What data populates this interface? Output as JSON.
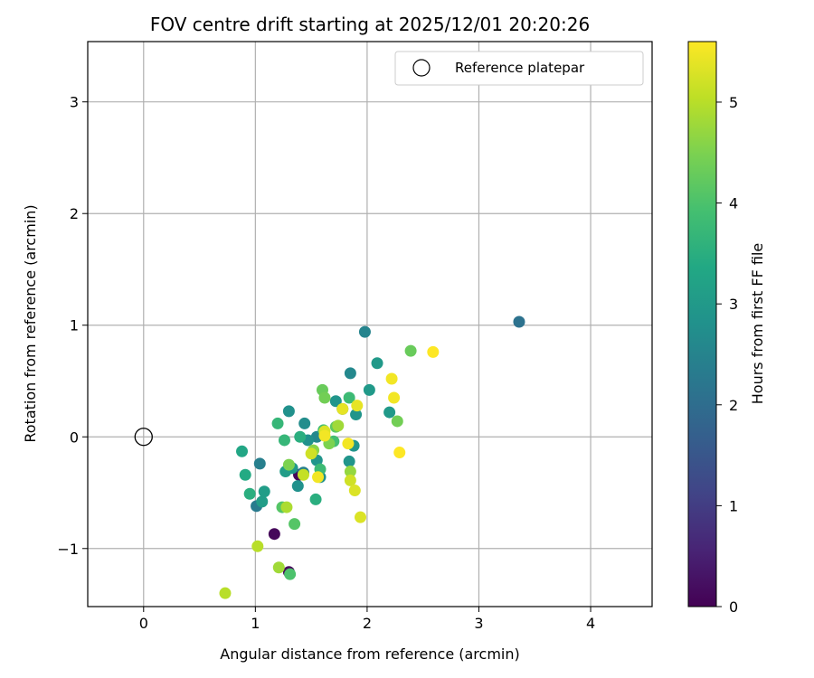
{
  "chart_data": {
    "type": "scatter",
    "title": "FOV centre drift starting at 2025/12/01 20:20:26",
    "xlabel": "Angular distance from reference (arcmin)",
    "ylabel": "Rotation from reference (arcmin)",
    "xlim": [
      -0.5,
      4.55
    ],
    "ylim": [
      -1.52,
      3.54
    ],
    "xticks": [
      0,
      1,
      2,
      3,
      4
    ],
    "yticks": [
      -1,
      0,
      1,
      2,
      3
    ],
    "xtick_labels": [
      "0",
      "1",
      "2",
      "3",
      "4"
    ],
    "ytick_labels": [
      "−1",
      "0",
      "1",
      "2",
      "3"
    ],
    "grid": true,
    "legend": {
      "position": "top-right",
      "entries": [
        "Reference platepar"
      ]
    },
    "reference_point": {
      "name": "Reference platepar",
      "x": 0,
      "y": 0
    },
    "colorbar": {
      "label": "Hours from first FF file",
      "range": [
        0,
        5.6
      ],
      "ticks": [
        0,
        1,
        2,
        3,
        4,
        5
      ],
      "tick_labels": [
        "0",
        "1",
        "2",
        "3",
        "4",
        "5"
      ],
      "colormap": "viridis"
    },
    "points": [
      {
        "x": 1.17,
        "y": -0.87,
        "hours": 0.1
      },
      {
        "x": 1.3,
        "y": -1.21,
        "hours": 0.1
      },
      {
        "x": 1.39,
        "y": -0.34,
        "hours": 0.1
      },
      {
        "x": 3.36,
        "y": 1.03,
        "hours": 2.1
      },
      {
        "x": 1.01,
        "y": -0.62,
        "hours": 2.3
      },
      {
        "x": 1.04,
        "y": -0.24,
        "hours": 2.4
      },
      {
        "x": 1.98,
        "y": 0.94,
        "hours": 2.5
      },
      {
        "x": 1.43,
        "y": -0.32,
        "hours": 2.4
      },
      {
        "x": 1.85,
        "y": 0.57,
        "hours": 2.6
      },
      {
        "x": 1.55,
        "y": 0.0,
        "hours": 2.6
      },
      {
        "x": 1.78,
        "y": 0.25,
        "hours": 2.6
      },
      {
        "x": 1.3,
        "y": 0.23,
        "hours": 2.8
      },
      {
        "x": 1.44,
        "y": 0.12,
        "hours": 2.7
      },
      {
        "x": 1.58,
        "y": -0.36,
        "hours": 2.8
      },
      {
        "x": 1.38,
        "y": -0.44,
        "hours": 2.8
      },
      {
        "x": 1.47,
        "y": -0.03,
        "hours": 2.8
      },
      {
        "x": 1.88,
        "y": -0.08,
        "hours": 2.9
      },
      {
        "x": 1.72,
        "y": 0.32,
        "hours": 2.9
      },
      {
        "x": 1.84,
        "y": -0.22,
        "hours": 2.9
      },
      {
        "x": 1.55,
        "y": -0.21,
        "hours": 2.9
      },
      {
        "x": 1.9,
        "y": 0.2,
        "hours": 2.9
      },
      {
        "x": 2.02,
        "y": 0.42,
        "hours": 3.0
      },
      {
        "x": 2.09,
        "y": 0.66,
        "hours": 3.0
      },
      {
        "x": 2.2,
        "y": 0.22,
        "hours": 3.0
      },
      {
        "x": 1.33,
        "y": -0.28,
        "hours": 3.0
      },
      {
        "x": 1.27,
        "y": -0.31,
        "hours": 3.1
      },
      {
        "x": 1.06,
        "y": -0.58,
        "hours": 3.1
      },
      {
        "x": 1.08,
        "y": -0.49,
        "hours": 3.1
      },
      {
        "x": 0.88,
        "y": -0.13,
        "hours": 3.3
      },
      {
        "x": 0.91,
        "y": -0.34,
        "hours": 3.4
      },
      {
        "x": 0.95,
        "y": -0.51,
        "hours": 3.5
      },
      {
        "x": 1.54,
        "y": -0.56,
        "hours": 3.5
      },
      {
        "x": 1.4,
        "y": 0.0,
        "hours": 3.5
      },
      {
        "x": 1.2,
        "y": 0.12,
        "hours": 3.7
      },
      {
        "x": 1.26,
        "y": -0.03,
        "hours": 3.7
      },
      {
        "x": 1.84,
        "y": 0.35,
        "hours": 3.8
      },
      {
        "x": 1.58,
        "y": -0.29,
        "hours": 3.8
      },
      {
        "x": 1.61,
        "y": 0.06,
        "hours": 3.9
      },
      {
        "x": 1.7,
        "y": -0.04,
        "hours": 3.9
      },
      {
        "x": 1.31,
        "y": -1.23,
        "hours": 4.0
      },
      {
        "x": 1.35,
        "y": -0.78,
        "hours": 4.1
      },
      {
        "x": 1.24,
        "y": -0.63,
        "hours": 4.1
      },
      {
        "x": 1.72,
        "y": 0.09,
        "hours": 4.2
      },
      {
        "x": 1.6,
        "y": 0.42,
        "hours": 4.3
      },
      {
        "x": 2.39,
        "y": 0.77,
        "hours": 4.3
      },
      {
        "x": 2.27,
        "y": 0.14,
        "hours": 4.4
      },
      {
        "x": 1.62,
        "y": 0.35,
        "hours": 4.4
      },
      {
        "x": 1.3,
        "y": -0.25,
        "hours": 4.5
      },
      {
        "x": 1.66,
        "y": -0.06,
        "hours": 4.5
      },
      {
        "x": 1.52,
        "y": -0.12,
        "hours": 4.6
      },
      {
        "x": 1.85,
        "y": -0.31,
        "hours": 4.7
      },
      {
        "x": 1.21,
        "y": -1.17,
        "hours": 4.8
      },
      {
        "x": 1.74,
        "y": 0.1,
        "hours": 4.8
      },
      {
        "x": 1.28,
        "y": -0.63,
        "hours": 4.9
      },
      {
        "x": 1.02,
        "y": -0.98,
        "hours": 5.0
      },
      {
        "x": 0.73,
        "y": -1.4,
        "hours": 5.0
      },
      {
        "x": 1.43,
        "y": -0.34,
        "hours": 5.1
      },
      {
        "x": 1.5,
        "y": -0.15,
        "hours": 5.2
      },
      {
        "x": 1.85,
        "y": -0.39,
        "hours": 5.2
      },
      {
        "x": 1.89,
        "y": -0.48,
        "hours": 5.3
      },
      {
        "x": 1.62,
        "y": 0.05,
        "hours": 5.3
      },
      {
        "x": 1.94,
        "y": -0.72,
        "hours": 5.3
      },
      {
        "x": 1.91,
        "y": 0.28,
        "hours": 5.4
      },
      {
        "x": 1.78,
        "y": 0.25,
        "hours": 5.4
      },
      {
        "x": 1.62,
        "y": 0.01,
        "hours": 5.5
      },
      {
        "x": 1.83,
        "y": -0.06,
        "hours": 5.5
      },
      {
        "x": 2.22,
        "y": 0.52,
        "hours": 5.5
      },
      {
        "x": 2.24,
        "y": 0.35,
        "hours": 5.5
      },
      {
        "x": 2.29,
        "y": -0.14,
        "hours": 5.6
      },
      {
        "x": 2.59,
        "y": 0.76,
        "hours": 5.6
      },
      {
        "x": 1.56,
        "y": -0.36,
        "hours": 5.5
      }
    ]
  }
}
